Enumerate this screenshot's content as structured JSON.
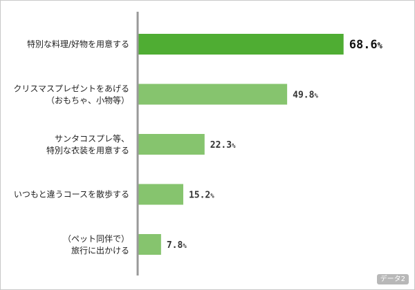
{
  "chart_data": {
    "type": "bar",
    "orientation": "horizontal",
    "categories": [
      [
        "特別な料理/好物を用意する"
      ],
      [
        "クリスマスプレゼントをあげる",
        "（おもちゃ、小物等）"
      ],
      [
        "サンタコスプレ等、",
        "特別な衣装を用意する"
      ],
      [
        "いつもと違うコースを散歩する"
      ],
      [
        "（ペット同伴で）",
        "旅行に出かける"
      ]
    ],
    "values": [
      68.6,
      49.8,
      22.3,
      15.2,
      7.8
    ],
    "value_labels": [
      "68.6",
      "49.8",
      "22.3",
      "15.2",
      "7.8"
    ],
    "unit": "%",
    "xlim": [
      0,
      100
    ],
    "grid": false,
    "colors": {
      "highlight": "#4fad33",
      "bar": "#86c46e",
      "axis": "#999999"
    }
  },
  "badge": "データ2"
}
